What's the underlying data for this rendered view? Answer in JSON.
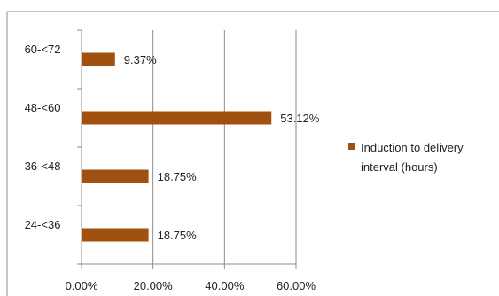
{
  "chart_data": {
    "type": "bar",
    "orientation": "horizontal",
    "categories": [
      "24-<36",
      "36-<48",
      "48-<60",
      "60-<72"
    ],
    "series": [
      {
        "name": "Induction to delivery interval (hours)",
        "values": [
          18.75,
          18.75,
          53.12,
          9.37
        ],
        "color": "#a0500f"
      }
    ],
    "data_labels": [
      "18.75%",
      "18.75%",
      "53.12%",
      "9.37%"
    ],
    "x_ticks": [
      "0.00%",
      "20.00%",
      "40.00%",
      "60.00%"
    ],
    "x_tick_values": [
      0,
      20,
      40,
      60
    ],
    "xlim": [
      0,
      60
    ],
    "grid": "vertical",
    "legend_position": "right",
    "legend_lines": [
      "Induction to delivery",
      "interval (hours)"
    ],
    "title": "",
    "xlabel": "",
    "ylabel": ""
  }
}
